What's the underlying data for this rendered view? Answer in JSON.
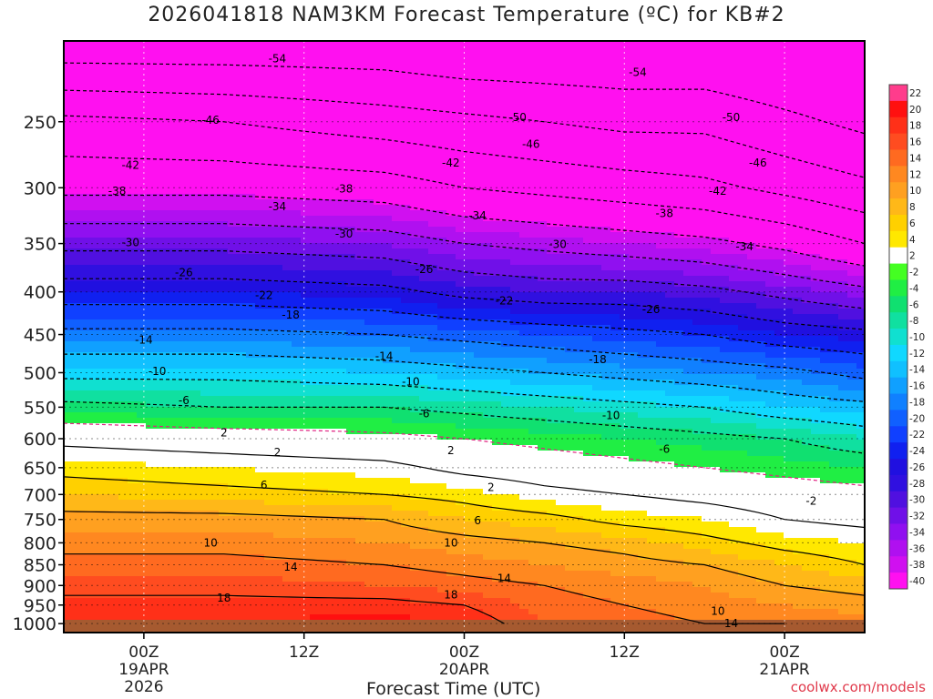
{
  "title": "2026041818 NAM3KM Forecast Temperature (ºC) for KB#2",
  "credit": "coolwx.com/models",
  "chart_data": {
    "type": "heatmap",
    "xlabel": "Forecast Time (UTC)",
    "ylabel": "",
    "y_ticks": [
      250,
      300,
      350,
      400,
      450,
      500,
      550,
      600,
      650,
      700,
      750,
      800,
      850,
      900,
      950,
      1000
    ],
    "y_range": [
      200,
      1025
    ],
    "y_scale": "log",
    "x_range_hours": [
      0,
      60
    ],
    "x_ticks": [
      {
        "hour": 6,
        "line1": "00Z",
        "line2": "19APR",
        "line3": "2026"
      },
      {
        "hour": 18,
        "line1": "12Z",
        "line2": "",
        "line3": ""
      },
      {
        "hour": 30,
        "line1": "00Z",
        "line2": "20APR",
        "line3": ""
      },
      {
        "hour": 42,
        "line1": "12Z",
        "line2": "",
        "line3": ""
      },
      {
        "hour": 54,
        "line1": "00Z",
        "line2": "21APR",
        "line3": ""
      }
    ],
    "colorbar_levels": [
      "22",
      "20",
      "18",
      "16",
      "14",
      "12",
      "10",
      "8",
      "6",
      "4",
      "2",
      "-2",
      "-4",
      "-6",
      "-8",
      "-10",
      "-12",
      "-14",
      "-16",
      "-18",
      "-20",
      "-22",
      "-24",
      "-26",
      "-28",
      "-30",
      "-32",
      "-34",
      "-36",
      "-38",
      "-40"
    ],
    "colorbar_colors": [
      "#ff3c8c",
      "#ff1010",
      "#ff3018",
      "#ff4c20",
      "#ff6a20",
      "#ff8820",
      "#ffa020",
      "#ffb818",
      "#ffd000",
      "#ffe800",
      "#ffffff",
      "#44ff22",
      "#20ee44",
      "#10e070",
      "#10e0a0",
      "#10e0d0",
      "#10d8ff",
      "#10c0ff",
      "#10a0ff",
      "#1080ff",
      "#1060ff",
      "#1040ff",
      "#1020f0",
      "#2010e0",
      "#3010e0",
      "#5010e0",
      "#7010e8",
      "#9010f0",
      "#b010f0",
      "#d010f0",
      "#ff10f0"
    ],
    "profile": {
      "hours": [
        0,
        12,
        24,
        30,
        36,
        42,
        48,
        54,
        60
      ],
      "pressure_levels": [
        200,
        250,
        300,
        350,
        400,
        450,
        500,
        550,
        600,
        650,
        700,
        750,
        800,
        850,
        900,
        950,
        1000
      ],
      "temperature": [
        [
          -57,
          -57,
          -57,
          -58,
          -58,
          -58,
          -58,
          -59,
          -60
        ],
        [
          -45,
          -46,
          -48,
          -49,
          -50,
          -51,
          -51,
          -53,
          -55
        ],
        [
          -39,
          -39,
          -40,
          -42,
          -43,
          -44,
          -45,
          -47,
          -49
        ],
        [
          -31,
          -31,
          -32,
          -34,
          -35,
          -36,
          -37,
          -39,
          -42
        ],
        [
          -24,
          -24,
          -25,
          -27,
          -28,
          -28,
          -29,
          -31,
          -33
        ],
        [
          -17,
          -17,
          -18,
          -19,
          -20,
          -21,
          -22,
          -24,
          -25
        ],
        [
          -11,
          -11,
          -12,
          -13,
          -14,
          -15,
          -16,
          -17,
          -19
        ],
        [
          -5,
          -6,
          -6,
          -7,
          -8,
          -9,
          -10,
          -12,
          -13
        ],
        [
          1,
          0,
          -1,
          -2,
          -3,
          -4,
          -5,
          -6,
          -8
        ],
        [
          5,
          4,
          3,
          1,
          0,
          -1,
          -2,
          -3,
          -4
        ],
        [
          8,
          7,
          6,
          5,
          3,
          2,
          1,
          0,
          -1
        ],
        [
          11,
          11,
          10,
          8,
          7,
          5,
          4,
          2,
          1
        ],
        [
          13,
          13,
          12,
          11,
          10,
          9,
          7,
          5,
          4
        ],
        [
          15,
          15,
          14,
          13,
          12,
          11,
          10,
          8,
          6
        ],
        [
          17,
          17,
          16,
          15,
          14,
          13,
          12,
          10,
          9
        ],
        [
          19,
          19,
          19,
          18,
          15,
          14,
          13,
          12,
          11
        ],
        [
          20,
          20,
          21,
          20,
          16,
          15,
          14,
          14,
          13
        ]
      ]
    },
    "contour_labels": [
      {
        "text": "-54",
        "hour": 16,
        "p": 210
      },
      {
        "text": "-54",
        "hour": 43,
        "p": 218
      },
      {
        "text": "-50",
        "hour": 34,
        "p": 247
      },
      {
        "text": "-50",
        "hour": 50,
        "p": 247
      },
      {
        "text": "-46",
        "hour": 11,
        "p": 249
      },
      {
        "text": "-46",
        "hour": 35,
        "p": 266
      },
      {
        "text": "-46",
        "hour": 52,
        "p": 280
      },
      {
        "text": "-42",
        "hour": 5,
        "p": 282
      },
      {
        "text": "-42",
        "hour": 29,
        "p": 280
      },
      {
        "text": "-42",
        "hour": 49,
        "p": 303
      },
      {
        "text": "-38",
        "hour": 4,
        "p": 303
      },
      {
        "text": "-38",
        "hour": 21,
        "p": 301
      },
      {
        "text": "-38",
        "hour": 45,
        "p": 322
      },
      {
        "text": "-34",
        "hour": 16,
        "p": 316
      },
      {
        "text": "-34",
        "hour": 31,
        "p": 324
      },
      {
        "text": "-34",
        "hour": 51,
        "p": 353
      },
      {
        "text": "-30",
        "hour": 5,
        "p": 349
      },
      {
        "text": "-30",
        "hour": 21,
        "p": 341
      },
      {
        "text": "-30",
        "hour": 37,
        "p": 351
      },
      {
        "text": "-26",
        "hour": 9,
        "p": 379
      },
      {
        "text": "-26",
        "hour": 27,
        "p": 376
      },
      {
        "text": "-26",
        "hour": 44,
        "p": 420
      },
      {
        "text": "-22",
        "hour": 15,
        "p": 404
      },
      {
        "text": "-22",
        "hour": 33,
        "p": 410
      },
      {
        "text": "-18",
        "hour": 17,
        "p": 426
      },
      {
        "text": "-18",
        "hour": 40,
        "p": 482
      },
      {
        "text": "-14",
        "hour": 6,
        "p": 457
      },
      {
        "text": "-14",
        "hour": 24,
        "p": 478
      },
      {
        "text": "-10",
        "hour": 7,
        "p": 498
      },
      {
        "text": "-10",
        "hour": 26,
        "p": 513
      },
      {
        "text": "-10",
        "hour": 41,
        "p": 563
      },
      {
        "text": "-6",
        "hour": 9,
        "p": 540
      },
      {
        "text": "-6",
        "hour": 27,
        "p": 560
      },
      {
        "text": "-6",
        "hour": 45,
        "p": 618
      },
      {
        "text": "-2",
        "hour": 56,
        "p": 713
      },
      {
        "text": "2",
        "hour": 12,
        "p": 590
      },
      {
        "text": "2",
        "hour": 16,
        "p": 623
      },
      {
        "text": "2",
        "hour": 29,
        "p": 620
      },
      {
        "text": "2",
        "hour": 32,
        "p": 686
      },
      {
        "text": "6",
        "hour": 15,
        "p": 682
      },
      {
        "text": "6",
        "hour": 31,
        "p": 752
      },
      {
        "text": "10",
        "hour": 11,
        "p": 800
      },
      {
        "text": "10",
        "hour": 29,
        "p": 800
      },
      {
        "text": "10",
        "hour": 49,
        "p": 966
      },
      {
        "text": "14",
        "hour": 17,
        "p": 855
      },
      {
        "text": "14",
        "hour": 33,
        "p": 883
      },
      {
        "text": "14",
        "hour": 50,
        "p": 1000
      },
      {
        "text": "18",
        "hour": 12,
        "p": 932
      },
      {
        "text": "18",
        "hour": 29,
        "p": 923
      }
    ]
  }
}
